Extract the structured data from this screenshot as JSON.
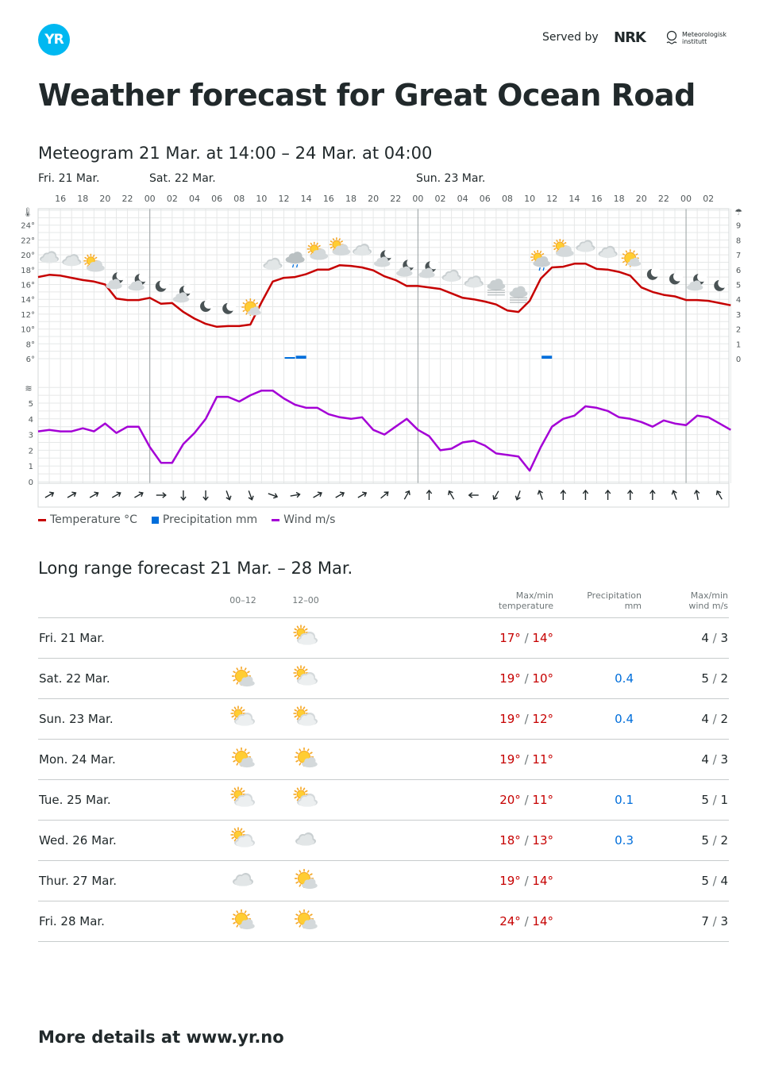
{
  "header": {
    "logo_text": "YR",
    "served_by": "Served by",
    "nrk_text": "NRK",
    "met_text_1": "Meteorologisk",
    "met_text_2": "institutt",
    "title": "Weather forecast for Great Ocean Road"
  },
  "meteogram": {
    "title": "Meteogram 21 Mar. at 14:00 – 24 Mar. at 04:00",
    "day_labels": [
      "Fri. 21 Mar.",
      "Sat. 22 Mar.",
      "Sun. 23 Mar."
    ],
    "hour_labels": [
      "16",
      "18",
      "20",
      "22",
      "00",
      "02",
      "04",
      "06",
      "08",
      "10",
      "12",
      "14",
      "16",
      "18",
      "20",
      "22",
      "00",
      "02",
      "04",
      "06",
      "08",
      "10",
      "12",
      "14",
      "16",
      "18",
      "20",
      "22",
      "00",
      "02"
    ],
    "temp_axis": [
      "24°",
      "22°",
      "20°",
      "18°",
      "16°",
      "14°",
      "12°",
      "10°",
      "8°",
      "6°"
    ],
    "precip_axis": [
      "9",
      "8",
      "7",
      "6",
      "5",
      "4",
      "3",
      "2",
      "1",
      "0"
    ],
    "wind_axis": [
      "5",
      "4",
      "3",
      "2",
      "1",
      "0"
    ],
    "temperature": [
      17.0,
      17.3,
      17.2,
      16.9,
      16.6,
      16.4,
      16.0,
      14.1,
      13.9,
      13.9,
      14.2,
      13.4,
      13.5,
      12.3,
      11.4,
      10.7,
      10.3,
      10.4,
      10.4,
      10.6,
      13.6,
      16.4,
      16.9,
      17.0,
      17.4,
      18.0,
      18.0,
      18.6,
      18.5,
      18.3,
      17.9,
      17.1,
      16.6,
      15.8,
      15.8,
      15.6,
      15.4,
      14.8,
      14.2,
      14.0,
      13.7,
      13.3,
      12.5,
      12.3,
      13.8,
      16.8,
      18.3,
      18.4,
      18.8,
      18.8,
      18.1,
      18.0,
      17.7,
      17.2,
      15.6,
      15.0,
      14.6,
      14.4,
      13.9,
      13.9,
      13.8,
      13.5,
      13.2
    ],
    "wind": [
      3.2,
      3.3,
      3.2,
      3.2,
      3.4,
      3.2,
      3.7,
      3.1,
      3.5,
      3.5,
      2.2,
      1.2,
      1.2,
      2.4,
      3.1,
      4.0,
      5.4,
      5.4,
      5.1,
      5.5,
      5.8,
      5.8,
      5.3,
      4.9,
      4.7,
      4.7,
      4.3,
      4.1,
      4.0,
      4.1,
      3.3,
      3.0,
      3.5,
      4.0,
      3.3,
      2.9,
      2.0,
      2.1,
      2.5,
      2.6,
      2.3,
      1.8,
      1.7,
      1.6,
      0.7,
      2.2,
      3.5,
      4.0,
      4.2,
      4.8,
      4.7,
      4.5,
      4.1,
      4.0,
      3.8,
      3.5,
      3.9,
      3.7,
      3.6,
      4.2,
      4.1,
      3.7,
      3.3
    ],
    "precipitation": [
      {
        "hour_index": 22,
        "value": 0.05
      },
      {
        "hour_index": 23,
        "value": 0.2
      },
      {
        "hour_index": 45,
        "value": 0.2
      }
    ],
    "symbols": [
      "cloud",
      "cloud",
      "partsun",
      "moonpart",
      "moonpart",
      "moon",
      "moonpart",
      "moon",
      "moon",
      "sun",
      "cloud",
      "raincloud",
      "partsun",
      "partsun",
      "cloud",
      "moonpart",
      "moonpart",
      "moonpart",
      "cloud",
      "cloud",
      "fog",
      "fog",
      "rainpart",
      "partsun",
      "cloud",
      "cloud",
      "sun",
      "moon",
      "moon",
      "moonpart",
      "moon"
    ],
    "wind_dirs": [
      60,
      60,
      60,
      60,
      60,
      90,
      180,
      180,
      160,
      160,
      110,
      80,
      60,
      60,
      60,
      50,
      30,
      0,
      330,
      270,
      210,
      200,
      340,
      0,
      0,
      0,
      0,
      0,
      340,
      350,
      330
    ],
    "legend": {
      "temperature": "Temperature °C",
      "precipitation": "Precipitation mm",
      "wind": "Wind m/s"
    },
    "colors": {
      "temperature": "#c60000",
      "precipitation": "#006edb",
      "wind": "#a400d6"
    }
  },
  "long_range": {
    "title": "Long range forecast 21 Mar. – 28 Mar.",
    "headers": {
      "period1": "00–12",
      "period2": "12–00",
      "temp_1": "Max/min",
      "temp_2": "temperature",
      "prec_1": "Precipitation",
      "prec_2": "mm",
      "wind_1": "Max/min",
      "wind_2": "wind m/s"
    },
    "rows": [
      {
        "day": "Fri. 21 Mar.",
        "p1": "",
        "p2": "partcloud",
        "max": "17°",
        "min": "14°",
        "precip": "",
        "wmax": "4",
        "wmin": "3"
      },
      {
        "day": "Sat. 22 Mar.",
        "p1": "sunny",
        "p2": "partcloud",
        "max": "19°",
        "min": "10°",
        "precip": "0.4",
        "wmax": "5",
        "wmin": "2"
      },
      {
        "day": "Sun. 23 Mar.",
        "p1": "partcloud",
        "p2": "partcloud",
        "max": "19°",
        "min": "12°",
        "precip": "0.4",
        "wmax": "4",
        "wmin": "2"
      },
      {
        "day": "Mon. 24 Mar.",
        "p1": "sunny",
        "p2": "sunny",
        "max": "19°",
        "min": "11°",
        "precip": "",
        "wmax": "4",
        "wmin": "3"
      },
      {
        "day": "Tue. 25 Mar.",
        "p1": "partcloud",
        "p2": "partcloud",
        "max": "20°",
        "min": "11°",
        "precip": "0.1",
        "wmax": "5",
        "wmin": "1"
      },
      {
        "day": "Wed. 26 Mar.",
        "p1": "partcloud",
        "p2": "cloud",
        "max": "18°",
        "min": "13°",
        "precip": "0.3",
        "wmax": "5",
        "wmin": "2"
      },
      {
        "day": "Thur. 27 Mar.",
        "p1": "cloud",
        "p2": "sunny",
        "max": "19°",
        "min": "14°",
        "precip": "",
        "wmax": "5",
        "wmin": "4"
      },
      {
        "day": "Fri. 28 Mar.",
        "p1": "sunny",
        "p2": "sunny",
        "max": "24°",
        "min": "14°",
        "precip": "",
        "wmax": "7",
        "wmin": "3"
      }
    ]
  },
  "footer": {
    "text": "More details at www.yr.no"
  }
}
